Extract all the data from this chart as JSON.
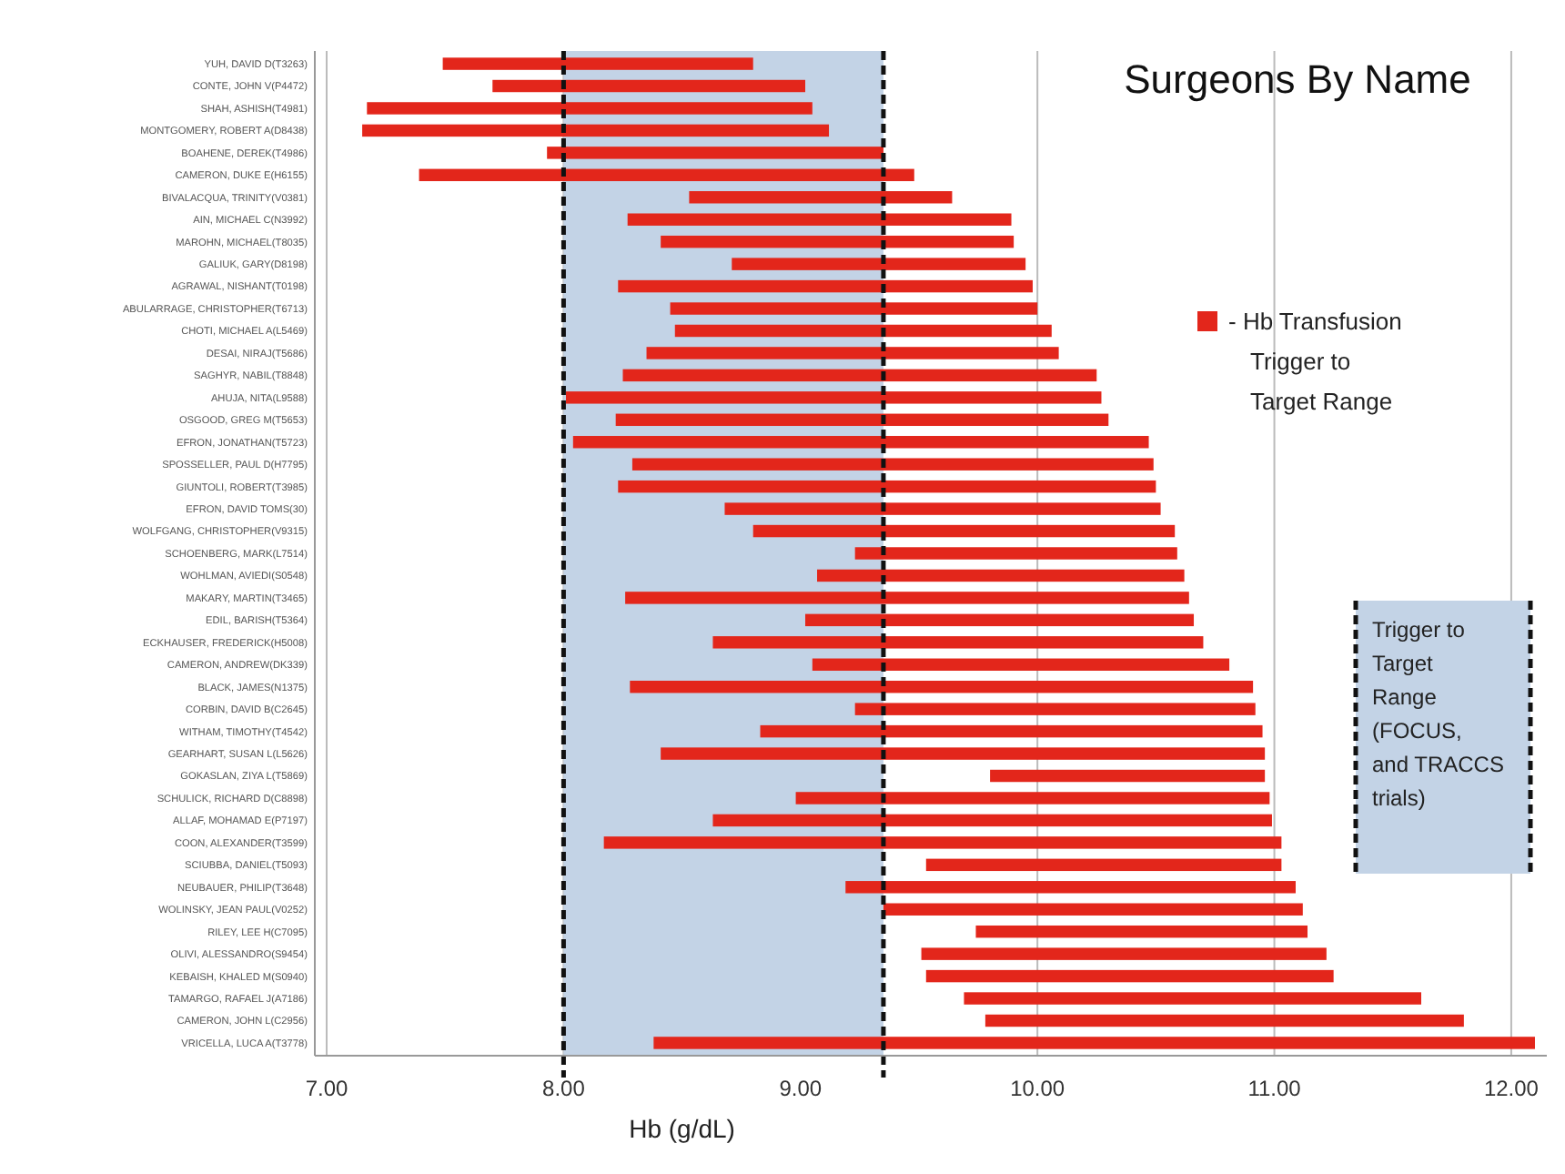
{
  "chart_data": {
    "type": "bar",
    "orientation": "horizontal",
    "title": "Surgeons By Name",
    "xlabel": "Hb (g/dL)",
    "categories": [
      "YUH, DAVID D(T3263)",
      "CONTE, JOHN V(P4472)",
      "SHAH, ASHISH(T4981)",
      "MONTGOMERY, ROBERT A(D8438)",
      "BOAHENE, DEREK(T4986)",
      "CAMERON, DUKE E(H6155)",
      "BIVALACQUA, TRINITY(V0381)",
      "AIN, MICHAEL C(N3992)",
      "MAROHN, MICHAEL(T8035)",
      "GALIUK, GARY(D8198)",
      "AGRAWAL, NISHANT(T0198)",
      "ABULARRAGE, CHRISTOPHER(T6713)",
      "CHOTI, MICHAEL A(L5469)",
      "DESAI, NIRAJ(T5686)",
      "SAGHYR, NABIL(T8848)",
      "AHUJA, NITA(L9588)",
      "OSGOOD, GREG M(T5653)",
      "EFRON, JONATHAN(T5723)",
      "SPOSSELLER, PAUL D(H7795)",
      "GIUNTOLI, ROBERT(T3985)",
      "EFRON, DAVID TOMS(30)",
      "WOLFGANG, CHRISTOPHER(V9315)",
      "SCHOENBERG, MARK(L7514)",
      "WOHLMAN, AVIEDI(S0548)",
      "MAKARY, MARTIN(T3465)",
      "EDIL, BARISH(T5364)",
      "ECKHAUSER, FREDERICK(H5008)",
      "CAMERON, ANDREW(DK339)",
      "BLACK, JAMES(N1375)",
      "CORBIN, DAVID B(C2645)",
      "WITHAM, TIMOTHY(T4542)",
      "GEARHART, SUSAN L(L5626)",
      "GOKASLAN, ZIYA L(T5869)",
      "SCHULICK, RICHARD D(C8898)",
      "ALLAF, MOHAMAD E(P7197)",
      "COON, ALEXANDER(T3599)",
      "SCIUBBA, DANIEL(T5093)",
      "NEUBAUER, PHILIP(T3648)",
      "WOLINSKY, JEAN PAUL(V0252)",
      "RILEY, LEE H(C7095)",
      "OLIVI, ALESSANDRO(S9454)",
      "KEBAISH, KHALED M(S0940)",
      "TAMARGO, RAFAEL J(A7186)",
      "CAMERON, JOHN L(C2956)",
      "VRICELLA, LUCA A(T3778)"
    ],
    "series": [
      {
        "name": "- Hb Transfusion Trigger to Target Range",
        "color": "#e3261b",
        "base": [
          7.49,
          7.7,
          7.17,
          7.15,
          7.93,
          7.39,
          8.53,
          8.27,
          8.41,
          8.71,
          8.23,
          8.45,
          8.47,
          8.35,
          8.25,
          8.01,
          8.22,
          8.04,
          8.29,
          8.23,
          8.68,
          8.8,
          9.23,
          9.07,
          8.26,
          9.02,
          8.63,
          9.05,
          8.28,
          9.23,
          8.83,
          8.41,
          9.8,
          8.98,
          8.63,
          8.17,
          9.53,
          9.19,
          9.35,
          9.74,
          9.51,
          9.53,
          9.69,
          9.78,
          8.38
        ],
        "values": [
          1.31,
          1.32,
          1.88,
          1.97,
          1.42,
          2.09,
          1.11,
          1.62,
          1.49,
          1.24,
          1.75,
          1.55,
          1.59,
          1.74,
          2.0,
          2.26,
          2.08,
          2.43,
          2.2,
          2.27,
          1.84,
          1.78,
          1.36,
          1.55,
          2.38,
          1.64,
          2.07,
          1.76,
          2.63,
          1.69,
          2.12,
          2.55,
          1.16,
          2.0,
          2.36,
          2.86,
          1.5,
          1.9,
          1.77,
          1.4,
          1.71,
          1.72,
          1.93,
          2.02,
          3.72
        ]
      }
    ],
    "xlim": [
      6.95,
      12.15
    ],
    "xticks": [
      {
        "value": 7,
        "label": "7.00"
      },
      {
        "value": 8,
        "label": "8.00"
      },
      {
        "value": 9,
        "label": "9.00"
      },
      {
        "value": 10,
        "label": "10.00"
      },
      {
        "value": 11,
        "label": "11.00"
      },
      {
        "value": 12,
        "label": "12.00"
      }
    ],
    "grid": "x",
    "legend": "right",
    "bands": [
      {
        "axis": "x",
        "from": 8,
        "to": 9.35,
        "color": "#c3d3e6"
      }
    ],
    "annotations": [
      "Trigger to Target Range (FOCUS, and TRACCS trials)"
    ],
    "ref_lines": [
      {
        "axis": "x",
        "value": 8,
        "color": "#111111",
        "line_style": "dashed"
      },
      {
        "axis": "x",
        "value": 9.35,
        "color": "#111111",
        "line_style": "dashed"
      }
    ]
  }
}
